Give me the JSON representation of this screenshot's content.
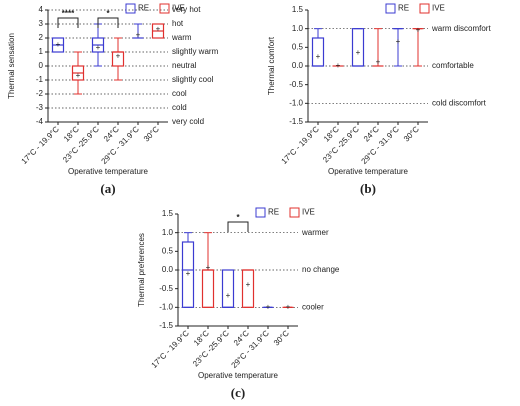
{
  "chart_data": [
    {
      "type": "box",
      "caption": "(a)",
      "y_label": "Thermal sensation",
      "x_label": "Operative temperature",
      "categories": [
        "17°C - 19.9°C",
        "18°C",
        "23°C -25.9°C",
        "24°C",
        "29°C - 31.9°C",
        "30°C"
      ],
      "ylim": [
        -4,
        4
      ],
      "yticks": [
        -4,
        -3,
        -2,
        -1,
        0,
        1,
        2,
        3,
        4
      ],
      "scale_labels": [
        {
          "value": 4,
          "label": "very hot"
        },
        {
          "value": 3,
          "label": "hot"
        },
        {
          "value": 2,
          "label": "warm"
        },
        {
          "value": 1,
          "label": "slightly warm"
        },
        {
          "value": 0,
          "label": "neutral"
        },
        {
          "value": -1,
          "label": "slightly cool"
        },
        {
          "value": -2,
          "label": "cool"
        },
        {
          "value": -3,
          "label": "cold"
        },
        {
          "value": -4,
          "label": "very cold"
        }
      ],
      "series": [
        {
          "name": "RE",
          "color": "#3b3bd1",
          "min": [
            1,
            null,
            0,
            null,
            2,
            null
          ],
          "q1": [
            1,
            null,
            1,
            null,
            2,
            null
          ],
          "median": [
            1.5,
            null,
            1.5,
            null,
            2,
            null
          ],
          "q3": [
            2,
            null,
            2,
            null,
            2,
            null
          ],
          "max": [
            2,
            null,
            3,
            null,
            3,
            null
          ],
          "mean": [
            1.5,
            null,
            1.3,
            null,
            2.2,
            null
          ]
        },
        {
          "name": "IVE",
          "color": "#e0302e",
          "min": [
            null,
            -2,
            null,
            -1,
            null,
            2
          ],
          "q1": [
            null,
            -1,
            null,
            0,
            null,
            2
          ],
          "median": [
            null,
            -0.5,
            null,
            1,
            null,
            2.5
          ],
          "q3": [
            null,
            0,
            null,
            1,
            null,
            3
          ],
          "max": [
            null,
            1,
            null,
            2,
            null,
            3
          ],
          "mean": [
            null,
            -0.7,
            null,
            0.7,
            null,
            2.6
          ]
        }
      ],
      "significance": [
        {
          "label": "****",
          "between": [
            "17°C - 19.9°C",
            "18°C"
          ]
        },
        {
          "label": "*",
          "between": [
            "23°C -25.9°C",
            "24°C"
          ]
        }
      ]
    },
    {
      "type": "box",
      "caption": "(b)",
      "y_label": "Thermal comfort",
      "x_label": "Operative temperature",
      "categories": [
        "17°C - 19.9°C",
        "18°C",
        "23°C -25.9°C",
        "24°C",
        "29°C - 31.9°C",
        "30°C"
      ],
      "ylim": [
        -1.5,
        1.5
      ],
      "yticks": [
        -1.5,
        {
          "value": -1,
          "label": "-1.0"
        },
        -0.5,
        {
          "value": 0,
          "label": "0.0"
        },
        0.5,
        {
          "value": 1,
          "label": "1.0"
        },
        1.5
      ],
      "scale_labels": [
        {
          "value": 1,
          "label": "warm discomfort"
        },
        {
          "value": 0,
          "label": "comfortable"
        },
        {
          "value": -1,
          "label": "cold discomfort"
        }
      ],
      "series": [
        {
          "name": "RE",
          "color": "#3b3bd1",
          "min": [
            0,
            null,
            0,
            null,
            0,
            null
          ],
          "q1": [
            0,
            null,
            0,
            null,
            1,
            null
          ],
          "median": [
            0,
            null,
            0,
            null,
            1,
            null
          ],
          "q3": [
            0.75,
            null,
            1,
            null,
            1,
            null
          ],
          "max": [
            1,
            null,
            1,
            null,
            1,
            null
          ],
          "mean": [
            0.25,
            null,
            0.35,
            null,
            0.65,
            null
          ]
        },
        {
          "name": "IVE",
          "color": "#e0302e",
          "min": [
            null,
            0,
            null,
            0,
            null,
            0
          ],
          "q1": [
            null,
            0,
            null,
            0,
            null,
            1
          ],
          "median": [
            null,
            0,
            null,
            0,
            null,
            1
          ],
          "q3": [
            null,
            0,
            null,
            0,
            null,
            1
          ],
          "max": [
            null,
            0,
            null,
            1,
            null,
            1
          ],
          "mean": [
            null,
            0,
            null,
            0.1,
            null,
            0.95
          ]
        }
      ],
      "significance": []
    },
    {
      "type": "box",
      "caption": "(c)",
      "y_label": "Thermal preferences",
      "x_label": "Operative temperature",
      "categories": [
        "17°C - 19.9°C",
        "18°C",
        "23°C -25.9°C",
        "24°C",
        "29°C - 31.9°C",
        "30°C"
      ],
      "ylim": [
        -1.5,
        1.5
      ],
      "yticks": [
        -1.5,
        {
          "value": -1,
          "label": "-1.0"
        },
        -0.5,
        {
          "value": 0,
          "label": "0.0"
        },
        0.5,
        {
          "value": 1,
          "label": "1.0"
        },
        1.5
      ],
      "scale_labels": [
        {
          "value": 1,
          "label": "warmer"
        },
        {
          "value": 0,
          "label": "no change"
        },
        {
          "value": -1,
          "label": "cooler"
        }
      ],
      "series": [
        {
          "name": "RE",
          "color": "#3b3bd1",
          "min": [
            -1,
            null,
            -1,
            null,
            -1,
            null
          ],
          "q1": [
            -1,
            null,
            -1,
            null,
            -1,
            null
          ],
          "median": [
            0,
            null,
            -1,
            null,
            -1,
            null
          ],
          "q3": [
            0.75,
            null,
            0,
            null,
            -1,
            null
          ],
          "max": [
            1,
            null,
            0,
            null,
            -1,
            null
          ],
          "mean": [
            -0.1,
            null,
            -0.7,
            null,
            -1,
            null
          ]
        },
        {
          "name": "IVE",
          "color": "#e0302e",
          "min": [
            null,
            -1,
            null,
            -1,
            null,
            -1
          ],
          "q1": [
            null,
            -1,
            null,
            -1,
            null,
            -1
          ],
          "median": [
            null,
            0,
            null,
            0,
            null,
            -1
          ],
          "q3": [
            null,
            0,
            null,
            0,
            null,
            -1
          ],
          "max": [
            null,
            1,
            null,
            0,
            null,
            -1
          ],
          "mean": [
            null,
            0.05,
            null,
            -0.4,
            null,
            -1
          ]
        }
      ],
      "significance": [
        {
          "label": "*",
          "between": [
            "23°C -25.9°C",
            "24°C"
          ]
        }
      ]
    }
  ]
}
